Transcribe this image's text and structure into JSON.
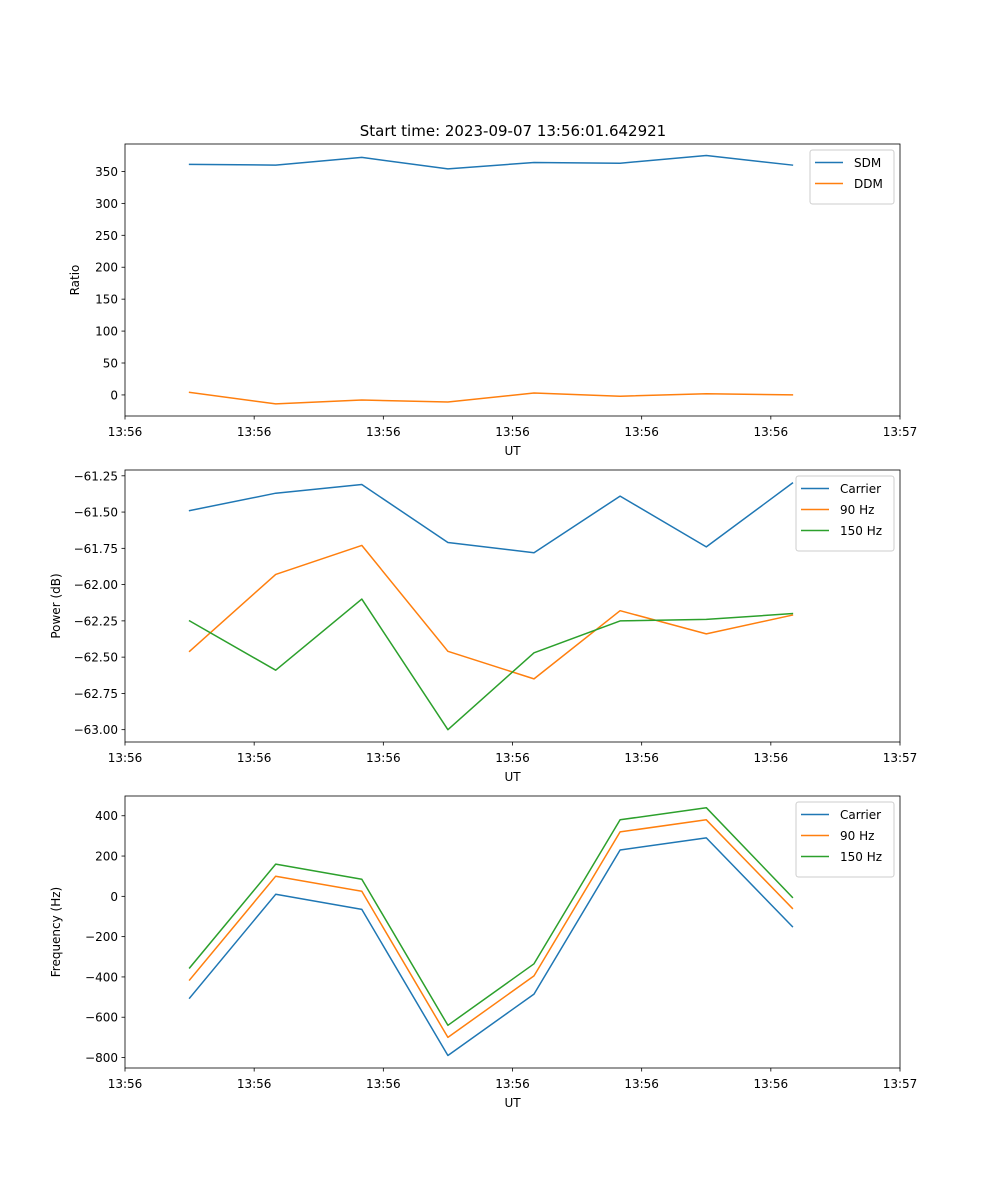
{
  "figure": {
    "title": "Start time: 2023-09-07 13:56:01.642921"
  },
  "chart_data": [
    {
      "type": "line",
      "title": "Start time: 2023-09-07 13:56:01.642921",
      "xlabel": "UT",
      "ylabel": "Ratio",
      "x_index": [
        1,
        2,
        3,
        4,
        5,
        6,
        7,
        8
      ],
      "xlim": [
        0.25,
        9.25
      ],
      "xticks": [
        0.25,
        1.75,
        3.25,
        4.75,
        6.25,
        7.75,
        9.25
      ],
      "xtick_labels": [
        "13:56",
        "13:56",
        "13:56",
        "13:56",
        "13:56",
        "13:56",
        "13:57"
      ],
      "ylim": [
        -33,
        393
      ],
      "yticks": [
        0,
        50,
        100,
        150,
        200,
        250,
        300,
        350
      ],
      "ytick_labels": [
        "0",
        "50",
        "100",
        "150",
        "200",
        "250",
        "300",
        "350"
      ],
      "legend_position": "top-right",
      "series": [
        {
          "name": "SDM",
          "color": "#1f77b4",
          "values": [
            361,
            360,
            372,
            354,
            364,
            363,
            375,
            360
          ]
        },
        {
          "name": "DDM",
          "color": "#ff7f0e",
          "values": [
            4,
            -14,
            -8,
            -11,
            3,
            -2,
            2,
            0
          ]
        }
      ]
    },
    {
      "type": "line",
      "xlabel": "UT",
      "ylabel": "Power (dB)",
      "x_index": [
        1,
        2,
        3,
        4,
        5,
        6,
        7,
        8
      ],
      "xlim": [
        0.25,
        9.25
      ],
      "xticks": [
        0.25,
        1.75,
        3.25,
        4.75,
        6.25,
        7.75,
        9.25
      ],
      "xtick_labels": [
        "13:56",
        "13:56",
        "13:56",
        "13:56",
        "13:56",
        "13:56",
        "13:57"
      ],
      "ylim": [
        -63.085,
        -61.21
      ],
      "yticks": [
        -63.0,
        -62.75,
        -62.5,
        -62.25,
        -62.0,
        -61.75,
        -61.5,
        -61.25
      ],
      "ytick_labels": [
        "−63.00",
        "−62.75",
        "−62.50",
        "−62.25",
        "−62.00",
        "−61.75",
        "−61.50",
        "−61.25"
      ],
      "legend_position": "top-right",
      "series": [
        {
          "name": "Carrier",
          "color": "#1f77b4",
          "values": [
            -61.49,
            -61.37,
            -61.31,
            -61.71,
            -61.78,
            -61.39,
            -61.74,
            -61.3
          ]
        },
        {
          "name": "90 Hz",
          "color": "#ff7f0e",
          "values": [
            -62.46,
            -61.93,
            -61.73,
            -62.46,
            -62.65,
            -62.18,
            -62.34,
            -62.21
          ]
        },
        {
          "name": "150 Hz",
          "color": "#2ca02c",
          "values": [
            -62.25,
            -62.59,
            -62.1,
            -63.0,
            -62.47,
            -62.25,
            -62.24,
            -62.2
          ]
        }
      ]
    },
    {
      "type": "line",
      "xlabel": "UT",
      "ylabel": "Frequency (Hz)",
      "x_index": [
        1,
        2,
        3,
        4,
        5,
        6,
        7,
        8
      ],
      "xlim": [
        0.25,
        9.25
      ],
      "xticks": [
        0.25,
        1.75,
        3.25,
        4.75,
        6.25,
        7.75,
        9.25
      ],
      "xtick_labels": [
        "13:56",
        "13:56",
        "13:56",
        "13:56",
        "13:56",
        "13:56",
        "13:57"
      ],
      "ylim": [
        -852,
        498
      ],
      "yticks": [
        -800,
        -600,
        -400,
        -200,
        0,
        200,
        400
      ],
      "ytick_labels": [
        "−800",
        "−600",
        "−400",
        "−200",
        "0",
        "200",
        "400"
      ],
      "legend_position": "top-right",
      "series": [
        {
          "name": "Carrier",
          "color": "#1f77b4",
          "values": [
            -505,
            10,
            -65,
            -790,
            -485,
            230,
            290,
            -150
          ]
        },
        {
          "name": "90 Hz",
          "color": "#ff7f0e",
          "values": [
            -415,
            100,
            25,
            -700,
            -395,
            320,
            380,
            -60
          ]
        },
        {
          "name": "150 Hz",
          "color": "#2ca02c",
          "values": [
            -355,
            160,
            85,
            -640,
            -335,
            380,
            440,
            -5
          ]
        }
      ]
    }
  ]
}
